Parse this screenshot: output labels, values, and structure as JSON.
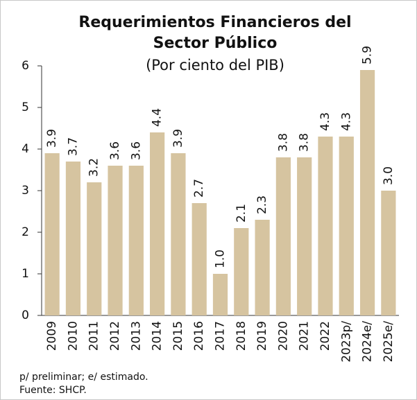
{
  "chart_data": {
    "type": "bar",
    "title": "Requerimientos Financieros del",
    "title_line2": "Sector Público",
    "subtitle": "(Por ciento del PIB)",
    "categories": [
      "2009",
      "2010",
      "2011",
      "2012",
      "2013",
      "2014",
      "2015",
      "2016",
      "2017",
      "2018",
      "2019",
      "2020",
      "2021",
      "2022",
      "2023p/",
      "2024e/",
      "2025e/"
    ],
    "values": [
      3.9,
      3.7,
      3.2,
      3.6,
      3.6,
      4.4,
      3.9,
      2.7,
      1.0,
      2.1,
      2.3,
      3.8,
      3.8,
      4.3,
      4.3,
      5.9,
      3.0
    ],
    "value_labels": [
      "3.9",
      "3.7",
      "3.2",
      "3.6",
      "3.6",
      "4.4",
      "3.9",
      "2.7",
      "1.0",
      "2.1",
      "2.3",
      "3.8",
      "3.8",
      "4.3",
      "4.3",
      "5.9",
      "3.0"
    ],
    "color": "#d6c4a0",
    "ylim": [
      0,
      6
    ],
    "yticks": [
      0,
      1,
      2,
      3,
      4,
      5,
      6
    ],
    "grid": false
  },
  "notes": [
    "p/ preliminar; e/ estimado.",
    "Fuente: SHCP."
  ]
}
